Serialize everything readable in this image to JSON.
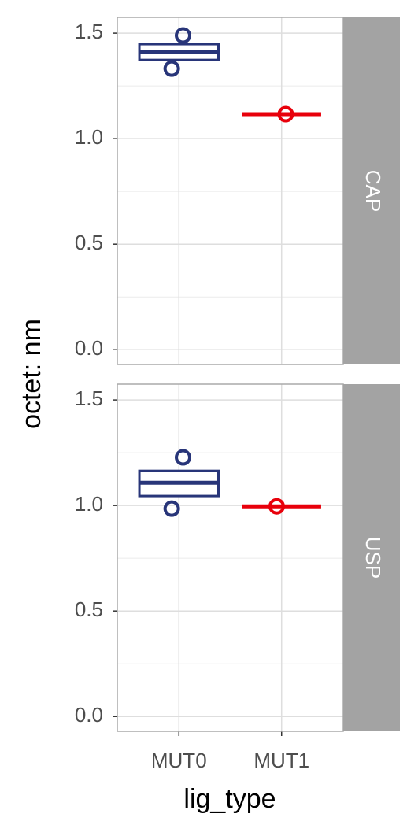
{
  "chart_data": {
    "type": "box",
    "y_label": "octet: nm",
    "x_label": "lig_type",
    "categories": [
      "MUT0",
      "MUT1"
    ],
    "ylim": [
      -0.07,
      1.575
    ],
    "yticks": [
      {
        "value": 0,
        "label": "0.0"
      },
      0.5,
      {
        "value": 1,
        "label": "1.0"
      },
      1.5
    ],
    "minor_yticks": [
      0.25,
      0.75,
      1.25
    ],
    "grid": true,
    "facets": [
      {
        "name": "CAP",
        "series": [
          {
            "name": "MUT0",
            "color": "#283579",
            "low": 1.373,
            "q1": 1.373,
            "median": 1.41,
            "q3": 1.448,
            "high": 1.448,
            "points": [
              1.489,
              1.332
            ]
          },
          {
            "name": "MUT1",
            "color": "#e8000b",
            "low": 1.116,
            "q1": 1.116,
            "median": 1.116,
            "q3": 1.116,
            "high": 1.116,
            "points": [
              1.116
            ]
          }
        ]
      },
      {
        "name": "USP",
        "series": [
          {
            "name": "MUT0",
            "color": "#283579",
            "low": 1.045,
            "q1": 1.045,
            "median": 1.108,
            "q3": 1.164,
            "high": 1.164,
            "points": [
              1.228,
              0.985
            ]
          },
          {
            "name": "MUT1",
            "color": "#e8000b",
            "low": 0.996,
            "q1": 0.996,
            "median": 0.996,
            "q3": 0.996,
            "high": 0.996,
            "points": [
              0.996
            ]
          }
        ]
      }
    ]
  }
}
